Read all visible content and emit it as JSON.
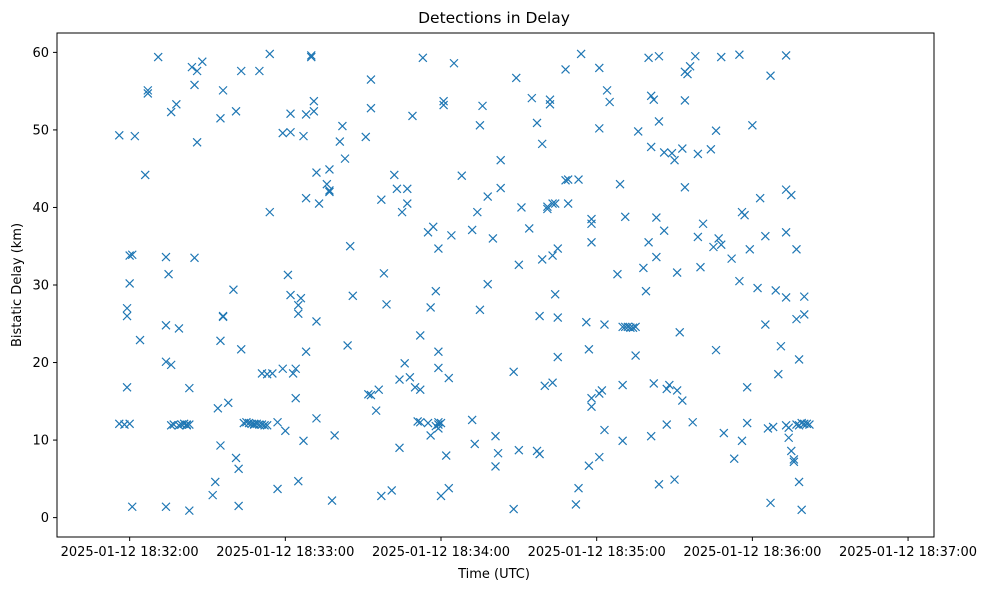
{
  "chart_data": {
    "type": "scatter",
    "title": "Detections in Delay",
    "xlabel": "Time (UTC)",
    "ylabel": "Bistatic Delay (km)",
    "marker": "x",
    "color": "#1f77b4",
    "grid": false,
    "x_tick_labels": [
      "2025-01-12 18:32:00",
      "2025-01-12 18:33:00",
      "2025-01-12 18:34:00",
      "2025-01-12 18:35:00",
      "2025-01-12 18:36:00",
      "2025-01-12 18:37:00"
    ],
    "x_tick_seconds": [
      0,
      60,
      120,
      180,
      240,
      300
    ],
    "x_unit": "seconds after 2025-01-12 18:32:00",
    "xlim": [
      -28,
      310
    ],
    "y_ticks": [
      0,
      10,
      20,
      30,
      40,
      50,
      60
    ],
    "ylim": [
      -2.5,
      62.5
    ],
    "points": [
      [
        -4,
        49.3
      ],
      [
        -4,
        12.1
      ],
      [
        -2,
        12.0
      ],
      [
        0,
        12.1
      ],
      [
        -1,
        27.0
      ],
      [
        -1,
        26.0
      ],
      [
        -1,
        16.8
      ],
      [
        0,
        33.8
      ],
      [
        1,
        33.9
      ],
      [
        0,
        30.2
      ],
      [
        1,
        1.4
      ],
      [
        2,
        49.2
      ],
      [
        4,
        22.9
      ],
      [
        6,
        44.2
      ],
      [
        7,
        55.1
      ],
      [
        7,
        54.7
      ],
      [
        11,
        59.4
      ],
      [
        14,
        33.6
      ],
      [
        14,
        1.4
      ],
      [
        14,
        24.8
      ],
      [
        14,
        20.1
      ],
      [
        15,
        31.4
      ],
      [
        16,
        52.3
      ],
      [
        16,
        19.7
      ],
      [
        16,
        11.9
      ],
      [
        17,
        12.0
      ],
      [
        18,
        53.3
      ],
      [
        19,
        24.4
      ],
      [
        19,
        11.9
      ],
      [
        20,
        12.0
      ],
      [
        21,
        12.1
      ],
      [
        22,
        12.0
      ],
      [
        22,
        11.9
      ],
      [
        23,
        16.7
      ],
      [
        23,
        12.0
      ],
      [
        23,
        0.9
      ],
      [
        24,
        58.1
      ],
      [
        25,
        55.8
      ],
      [
        25,
        33.5
      ],
      [
        26,
        48.4
      ],
      [
        26,
        57.6
      ],
      [
        28,
        58.8
      ],
      [
        32,
        2.9
      ],
      [
        33,
        4.6
      ],
      [
        34,
        14.1
      ],
      [
        35,
        9.3
      ],
      [
        35,
        51.5
      ],
      [
        35,
        22.8
      ],
      [
        36,
        26.0
      ],
      [
        36,
        25.9
      ],
      [
        36,
        55.1
      ],
      [
        38,
        14.8
      ],
      [
        40,
        29.4
      ],
      [
        41,
        52.4
      ],
      [
        41,
        7.7
      ],
      [
        42,
        6.3
      ],
      [
        42,
        1.5
      ],
      [
        43,
        21.7
      ],
      [
        43,
        57.6
      ],
      [
        44,
        12.2
      ],
      [
        45,
        12.3
      ],
      [
        46,
        12.2
      ],
      [
        47,
        12.1
      ],
      [
        48,
        12.1
      ],
      [
        48,
        12.0
      ],
      [
        49,
        12.1
      ],
      [
        50,
        12.0
      ],
      [
        50,
        57.6
      ],
      [
        51,
        18.6
      ],
      [
        51,
        12.0
      ],
      [
        52,
        11.9
      ],
      [
        53,
        11.9
      ],
      [
        53,
        18.5
      ],
      [
        54,
        39.4
      ],
      [
        54,
        59.8
      ],
      [
        55,
        18.6
      ],
      [
        57,
        3.7
      ],
      [
        57,
        12.3
      ],
      [
        59,
        49.6
      ],
      [
        59,
        19.2
      ],
      [
        60,
        11.2
      ],
      [
        61,
        31.3
      ],
      [
        62,
        28.7
      ],
      [
        62,
        49.7
      ],
      [
        62,
        52.1
      ],
      [
        63,
        18.6
      ],
      [
        64,
        15.4
      ],
      [
        64,
        19.2
      ],
      [
        65,
        27.4
      ],
      [
        65,
        26.3
      ],
      [
        65,
        4.7
      ],
      [
        66,
        28.3
      ],
      [
        67,
        49.2
      ],
      [
        67,
        9.9
      ],
      [
        68,
        41.2
      ],
      [
        68,
        21.4
      ],
      [
        68,
        52.0
      ],
      [
        70,
        59.4
      ],
      [
        70,
        59.6
      ],
      [
        71,
        53.7
      ],
      [
        71,
        52.4
      ],
      [
        72,
        12.8
      ],
      [
        72,
        25.3
      ],
      [
        72,
        44.5
      ],
      [
        73,
        40.5
      ],
      [
        76,
        43.0
      ],
      [
        77,
        42.2
      ],
      [
        77,
        42.0
      ],
      [
        77,
        44.9
      ],
      [
        78,
        2.2
      ],
      [
        79,
        10.6
      ],
      [
        81,
        48.5
      ],
      [
        82,
        50.5
      ],
      [
        83,
        46.3
      ],
      [
        84,
        22.2
      ],
      [
        85,
        35.0
      ],
      [
        86,
        28.6
      ],
      [
        91,
        49.1
      ],
      [
        92,
        15.9
      ],
      [
        93,
        15.8
      ],
      [
        93,
        52.8
      ],
      [
        93,
        56.5
      ],
      [
        95,
        13.8
      ],
      [
        96,
        16.5
      ],
      [
        97,
        41.0
      ],
      [
        97,
        2.8
      ],
      [
        98,
        31.5
      ],
      [
        99,
        27.5
      ],
      [
        101,
        3.5
      ],
      [
        102,
        44.2
      ],
      [
        103,
        42.4
      ],
      [
        104,
        17.8
      ],
      [
        104,
        9.0
      ],
      [
        105,
        39.4
      ],
      [
        106,
        19.9
      ],
      [
        107,
        40.5
      ],
      [
        107,
        42.4
      ],
      [
        108,
        18.1
      ],
      [
        109,
        51.8
      ],
      [
        110,
        16.8
      ],
      [
        111,
        12.4
      ],
      [
        112,
        12.3
      ],
      [
        112,
        16.5
      ],
      [
        112,
        23.5
      ],
      [
        113,
        59.3
      ],
      [
        115,
        36.8
      ],
      [
        115,
        12.2
      ],
      [
        116,
        10.6
      ],
      [
        116,
        27.1
      ],
      [
        117,
        37.5
      ],
      [
        118,
        11.8
      ],
      [
        118,
        29.2
      ],
      [
        119,
        12.3
      ],
      [
        119,
        12.0
      ],
      [
        119,
        11.5
      ],
      [
        119,
        34.7
      ],
      [
        119,
        21.4
      ],
      [
        119,
        19.3
      ],
      [
        120,
        2.8
      ],
      [
        120,
        12.2
      ],
      [
        121,
        53.2
      ],
      [
        121,
        53.7
      ],
      [
        122,
        8.0
      ],
      [
        123,
        18.0
      ],
      [
        123,
        3.8
      ],
      [
        124,
        36.4
      ],
      [
        125,
        58.6
      ],
      [
        128,
        44.1
      ],
      [
        132,
        12.6
      ],
      [
        132,
        37.1
      ],
      [
        133,
        9.5
      ],
      [
        134,
        39.4
      ],
      [
        135,
        50.6
      ],
      [
        135,
        26.8
      ],
      [
        136,
        53.1
      ],
      [
        138,
        41.4
      ],
      [
        138,
        30.1
      ],
      [
        140,
        36.0
      ],
      [
        141,
        10.5
      ],
      [
        141,
        6.6
      ],
      [
        142,
        8.3
      ],
      [
        143,
        42.5
      ],
      [
        143,
        46.1
      ],
      [
        148,
        18.8
      ],
      [
        148,
        1.1
      ],
      [
        149,
        56.7
      ],
      [
        150,
        32.6
      ],
      [
        150,
        8.7
      ],
      [
        151,
        40.0
      ],
      [
        154,
        37.3
      ],
      [
        155,
        54.1
      ],
      [
        157,
        50.9
      ],
      [
        157,
        8.6
      ],
      [
        158,
        8.2
      ],
      [
        158,
        26.0
      ],
      [
        159,
        48.2
      ],
      [
        159,
        33.3
      ],
      [
        160,
        17.0
      ],
      [
        161,
        39.8
      ],
      [
        161,
        40.1
      ],
      [
        162,
        53.9
      ],
      [
        162,
        53.3
      ],
      [
        163,
        40.5
      ],
      [
        163,
        17.4
      ],
      [
        163,
        33.8
      ],
      [
        164,
        40.5
      ],
      [
        164,
        28.8
      ],
      [
        165,
        25.8
      ],
      [
        165,
        34.7
      ],
      [
        165,
        20.7
      ],
      [
        168,
        57.8
      ],
      [
        168,
        43.5
      ],
      [
        169,
        43.6
      ],
      [
        169,
        40.5
      ],
      [
        172,
        1.7
      ],
      [
        173,
        3.8
      ],
      [
        173,
        43.6
      ],
      [
        174,
        59.8
      ],
      [
        176,
        25.2
      ],
      [
        177,
        6.7
      ],
      [
        177,
        21.7
      ],
      [
        178,
        15.4
      ],
      [
        178,
        14.3
      ],
      [
        178,
        38.5
      ],
      [
        178,
        37.9
      ],
      [
        178,
        35.5
      ],
      [
        181,
        58.0
      ],
      [
        181,
        50.2
      ],
      [
        181,
        16.0
      ],
      [
        181,
        7.8
      ],
      [
        182,
        16.4
      ],
      [
        183,
        11.3
      ],
      [
        183,
        24.9
      ],
      [
        184,
        55.1
      ],
      [
        185,
        53.6
      ],
      [
        188,
        31.4
      ],
      [
        189,
        43.0
      ],
      [
        190,
        24.6
      ],
      [
        190,
        17.1
      ],
      [
        190,
        9.9
      ],
      [
        191,
        24.6
      ],
      [
        191,
        38.8
      ],
      [
        192,
        24.6
      ],
      [
        193,
        24.5
      ],
      [
        194,
        24.5
      ],
      [
        195,
        24.6
      ],
      [
        195,
        20.9
      ],
      [
        196,
        49.8
      ],
      [
        198,
        32.2
      ],
      [
        199,
        29.2
      ],
      [
        200,
        35.5
      ],
      [
        200,
        59.3
      ],
      [
        201,
        54.4
      ],
      [
        201,
        47.8
      ],
      [
        201,
        10.5
      ],
      [
        202,
        17.3
      ],
      [
        202,
        53.9
      ],
      [
        203,
        33.6
      ],
      [
        203,
        38.7
      ],
      [
        204,
        59.5
      ],
      [
        204,
        51.1
      ],
      [
        204,
        4.3
      ],
      [
        206,
        47.1
      ],
      [
        206,
        37.0
      ],
      [
        207,
        16.6
      ],
      [
        207,
        12.0
      ],
      [
        208,
        17.1
      ],
      [
        209,
        47.0
      ],
      [
        210,
        46.1
      ],
      [
        210,
        4.9
      ],
      [
        211,
        31.6
      ],
      [
        211,
        16.4
      ],
      [
        212,
        23.9
      ],
      [
        213,
        47.6
      ],
      [
        213,
        15.1
      ],
      [
        214,
        53.8
      ],
      [
        214,
        57.5
      ],
      [
        214,
        42.6
      ],
      [
        215,
        57.2
      ],
      [
        216,
        58.2
      ],
      [
        217,
        12.3
      ],
      [
        218,
        59.5
      ],
      [
        219,
        46.9
      ],
      [
        219,
        36.2
      ],
      [
        220,
        32.3
      ],
      [
        221,
        37.9
      ],
      [
        224,
        47.5
      ],
      [
        225,
        34.9
      ],
      [
        226,
        49.9
      ],
      [
        226,
        21.6
      ],
      [
        227,
        36.0
      ],
      [
        228,
        59.4
      ],
      [
        228,
        35.2
      ],
      [
        229,
        10.9
      ],
      [
        232,
        33.4
      ],
      [
        233,
        7.6
      ],
      [
        235,
        30.5
      ],
      [
        235,
        59.7
      ],
      [
        236,
        39.4
      ],
      [
        236,
        9.9
      ],
      [
        237,
        39.0
      ],
      [
        238,
        16.8
      ],
      [
        238,
        12.2
      ],
      [
        239,
        34.6
      ],
      [
        240,
        50.6
      ],
      [
        242,
        29.6
      ],
      [
        243,
        41.2
      ],
      [
        245,
        36.3
      ],
      [
        245,
        24.9
      ],
      [
        246,
        11.5
      ],
      [
        247,
        1.9
      ],
      [
        247,
        57.0
      ],
      [
        248,
        11.7
      ],
      [
        249,
        29.3
      ],
      [
        250,
        18.5
      ],
      [
        251,
        22.1
      ],
      [
        253,
        42.3
      ],
      [
        253,
        59.6
      ],
      [
        253,
        36.8
      ],
      [
        253,
        28.4
      ],
      [
        253,
        11.9
      ],
      [
        254,
        11.6
      ],
      [
        254,
        10.3
      ],
      [
        255,
        41.6
      ],
      [
        255,
        8.6
      ],
      [
        256,
        7.2
      ],
      [
        256,
        7.5
      ],
      [
        257,
        12.0
      ],
      [
        257,
        34.6
      ],
      [
        257,
        25.6
      ],
      [
        258,
        4.6
      ],
      [
        258,
        11.9
      ],
      [
        258,
        20.4
      ],
      [
        259,
        12.2
      ],
      [
        259,
        1.0
      ],
      [
        260,
        12.1
      ],
      [
        260,
        28.5
      ],
      [
        260,
        26.2
      ],
      [
        261,
        12.1
      ],
      [
        262,
        12.0
      ]
    ]
  }
}
